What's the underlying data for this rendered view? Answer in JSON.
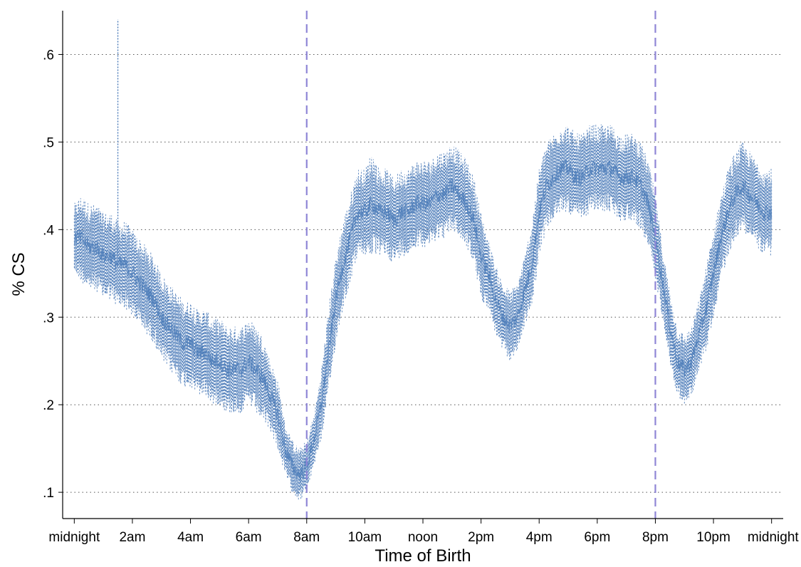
{
  "chart_data": {
    "type": "line",
    "title": "",
    "xlabel": "Time of Birth",
    "ylabel": "% CS",
    "xlim": [
      -0.4,
      24.4
    ],
    "ylim": [
      0.07,
      0.65
    ],
    "grid": "horizontal-dotted",
    "x_ticks": [
      {
        "value": 0,
        "label": "midnight"
      },
      {
        "value": 2,
        "label": "2am"
      },
      {
        "value": 4,
        "label": "4am"
      },
      {
        "value": 6,
        "label": "6am"
      },
      {
        "value": 8,
        "label": "8am"
      },
      {
        "value": 10,
        "label": "10am"
      },
      {
        "value": 12,
        "label": "noon"
      },
      {
        "value": 14,
        "label": "2pm"
      },
      {
        "value": 16,
        "label": "4pm"
      },
      {
        "value": 18,
        "label": "6pm"
      },
      {
        "value": 20,
        "label": "8pm"
      },
      {
        "value": 22,
        "label": "10pm"
      },
      {
        "value": 24,
        "label": "midnight"
      }
    ],
    "y_ticks": [
      {
        "value": 0.1,
        "label": ".1"
      },
      {
        "value": 0.2,
        "label": ".2"
      },
      {
        "value": 0.3,
        "label": ".3"
      },
      {
        "value": 0.4,
        "label": ".4"
      },
      {
        "value": 0.5,
        "label": ".5"
      },
      {
        "value": 0.6,
        "label": ".6"
      }
    ],
    "vertical_lines": [
      {
        "x": 8,
        "color": "#8f86d6",
        "style": "dashed"
      },
      {
        "x": 20,
        "color": "#8f86d6",
        "style": "dashed"
      }
    ],
    "series": [
      {
        "color": "#4a7ab8",
        "x": [
          0,
          0.25,
          0.5,
          0.75,
          1,
          1.25,
          1.5,
          1.75,
          2,
          2.25,
          2.5,
          2.75,
          3,
          3.25,
          3.5,
          3.75,
          4,
          4.25,
          4.5,
          4.75,
          5,
          5.25,
          5.5,
          5.75,
          6,
          6.25,
          6.5,
          6.75,
          7,
          7.25,
          7.5,
          7.75,
          8,
          8.25,
          8.5,
          8.75,
          9,
          9.25,
          9.5,
          9.75,
          10,
          10.25,
          10.5,
          10.75,
          11,
          11.25,
          11.5,
          11.75,
          12,
          12.25,
          12.5,
          12.75,
          13,
          13.25,
          13.5,
          13.75,
          14,
          14.25,
          14.5,
          14.75,
          15,
          15.25,
          15.5,
          15.75,
          16,
          16.25,
          16.5,
          16.75,
          17,
          17.25,
          17.5,
          17.75,
          18,
          18.25,
          18.5,
          18.75,
          19,
          19.25,
          19.5,
          19.75,
          20,
          20.25,
          20.5,
          20.75,
          21,
          21.25,
          21.5,
          21.75,
          22,
          22.25,
          22.5,
          22.75,
          23,
          23.25,
          23.5,
          23.75,
          24
        ],
        "center": [
          0.39,
          0.39,
          0.38,
          0.38,
          0.37,
          0.37,
          0.36,
          0.36,
          0.35,
          0.34,
          0.33,
          0.32,
          0.3,
          0.29,
          0.28,
          0.27,
          0.27,
          0.26,
          0.26,
          0.25,
          0.25,
          0.24,
          0.24,
          0.24,
          0.25,
          0.24,
          0.23,
          0.21,
          0.19,
          0.15,
          0.13,
          0.12,
          0.13,
          0.16,
          0.2,
          0.26,
          0.32,
          0.36,
          0.39,
          0.42,
          0.42,
          0.43,
          0.42,
          0.42,
          0.41,
          0.42,
          0.42,
          0.43,
          0.43,
          0.43,
          0.44,
          0.44,
          0.45,
          0.44,
          0.43,
          0.41,
          0.37,
          0.35,
          0.32,
          0.3,
          0.29,
          0.3,
          0.33,
          0.36,
          0.42,
          0.45,
          0.46,
          0.47,
          0.47,
          0.46,
          0.46,
          0.47,
          0.47,
          0.47,
          0.47,
          0.46,
          0.46,
          0.46,
          0.45,
          0.43,
          0.39,
          0.34,
          0.29,
          0.25,
          0.24,
          0.25,
          0.28,
          0.31,
          0.35,
          0.39,
          0.42,
          0.44,
          0.45,
          0.44,
          0.43,
          0.42,
          0.42
        ],
        "spread": [
          0.04,
          0.05,
          0.05,
          0.05,
          0.05,
          0.05,
          0.05,
          0.05,
          0.05,
          0.05,
          0.05,
          0.05,
          0.05,
          0.05,
          0.05,
          0.05,
          0.05,
          0.05,
          0.05,
          0.05,
          0.05,
          0.05,
          0.05,
          0.05,
          0.05,
          0.05,
          0.05,
          0.04,
          0.04,
          0.03,
          0.03,
          0.03,
          0.03,
          0.03,
          0.04,
          0.05,
          0.05,
          0.05,
          0.05,
          0.05,
          0.05,
          0.06,
          0.05,
          0.05,
          0.05,
          0.05,
          0.05,
          0.05,
          0.05,
          0.05,
          0.05,
          0.05,
          0.05,
          0.05,
          0.05,
          0.05,
          0.05,
          0.04,
          0.04,
          0.04,
          0.04,
          0.04,
          0.04,
          0.05,
          0.05,
          0.05,
          0.05,
          0.05,
          0.05,
          0.05,
          0.05,
          0.05,
          0.05,
          0.05,
          0.05,
          0.05,
          0.05,
          0.05,
          0.05,
          0.05,
          0.05,
          0.04,
          0.04,
          0.04,
          0.04,
          0.04,
          0.04,
          0.05,
          0.05,
          0.05,
          0.05,
          0.05,
          0.05,
          0.05,
          0.05,
          0.05,
          0.05
        ]
      }
    ],
    "outlier_spike": {
      "x": 1.5,
      "y": 0.64
    }
  }
}
